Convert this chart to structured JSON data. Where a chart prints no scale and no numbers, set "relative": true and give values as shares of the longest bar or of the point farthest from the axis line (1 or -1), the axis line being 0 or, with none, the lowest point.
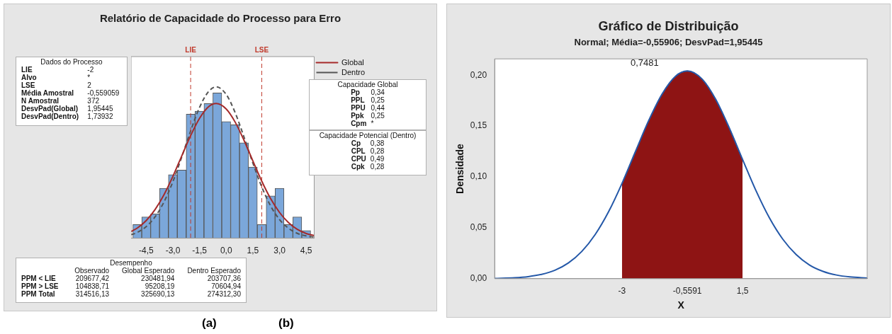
{
  "chart_data": [
    {
      "type": "histogram",
      "title": "Relatório de Capacidade do Processo para Erro",
      "relative": true,
      "color": "#7ba7da",
      "bins": [
        -5.25,
        -4.75,
        -4.25,
        -3.75,
        -3.25,
        -2.75,
        -2.25,
        -1.75,
        -1.25,
        -0.75,
        -0.25,
        0.25,
        0.75,
        1.25,
        1.75,
        2.25,
        2.75,
        3.25,
        3.75,
        4.25,
        4.75
      ],
      "values": [
        0.09,
        0.14,
        0.16,
        0.33,
        0.42,
        0.45,
        0.82,
        0.84,
        0.89,
        0.96,
        0.77,
        0.75,
        0.63,
        0.47,
        0.09,
        0.28,
        0.33,
        0.09,
        0.14,
        0.05
      ],
      "series": [
        {
          "type": "line",
          "name": "Global",
          "color": "#a52a2a",
          "line_style": "solid",
          "x": [
            -5.35,
            -5,
            -4.5,
            -4,
            -3.5,
            -3,
            -2.5,
            -2,
            -1.5,
            -1,
            -0.559,
            0,
            0.5,
            1,
            1.5,
            2,
            2.5,
            3,
            3.5,
            4,
            4.5,
            4.95
          ],
          "values": [
            0.044,
            0.067,
            0.116,
            0.189,
            0.287,
            0.408,
            0.544,
            0.678,
            0.792,
            0.868,
            0.89,
            0.854,
            0.768,
            0.647,
            0.511,
            0.377,
            0.261,
            0.17,
            0.103,
            0.058,
            0.031,
            0.017
          ]
        },
        {
          "type": "line",
          "name": "Dentro",
          "color": "#555555",
          "line_style": "dashed",
          "x": [
            -5.35,
            -5,
            -4.5,
            -4,
            -3.5,
            -3,
            -2.5,
            -2,
            -1.5,
            -1,
            -0.559,
            0,
            0.5,
            1,
            1.5,
            2,
            2.5,
            3,
            3.5,
            4,
            4.5,
            4.95
          ],
          "values": [
            0.023,
            0.038,
            0.077,
            0.141,
            0.239,
            0.373,
            0.536,
            0.709,
            0.864,
            0.968,
            1,
            0.95,
            0.831,
            0.669,
            0.496,
            0.339,
            0.213,
            0.123,
            0.066,
            0.032,
            0.015,
            0.007
          ]
        }
      ],
      "xlim": [
        -5.35,
        4.95
      ],
      "xticks": [
        {
          "value": -4.5,
          "label": "-4,5"
        },
        {
          "value": -3,
          "label": "-3,0"
        },
        {
          "value": -1.5,
          "label": "-1,5"
        },
        {
          "value": 0,
          "label": "0,0"
        },
        {
          "value": 1.5,
          "label": "1,5"
        },
        {
          "value": 3,
          "label": "3,0"
        },
        {
          "value": 4.5,
          "label": "4,5"
        }
      ],
      "ref_lines": [
        {
          "axis": "x",
          "value": -2,
          "label": "LIE",
          "color": "#c0392b",
          "line_style": "dashed"
        },
        {
          "axis": "x",
          "value": 2,
          "label": "LSE",
          "color": "#c0392b",
          "line_style": "dashed"
        }
      ],
      "legend": "top right",
      "annotations": [
        "(a)",
        "(b)"
      ]
    },
    {
      "type": "other",
      "title": "Dados do Processo",
      "annotations": [
        "LIE",
        "-2",
        "Alvo",
        "*",
        "LSE",
        "2",
        "Média Amostral",
        "-0,559059",
        "N Amostral",
        "372",
        "DesvPad(Global)",
        "1,95445",
        "DesvPad(Dentro)",
        "1,73932"
      ]
    },
    {
      "type": "other",
      "title": "Capacidade Global",
      "annotations": [
        "Pp",
        "0,34",
        "PPL",
        "0,25",
        "PPU",
        "0,44",
        "Ppk",
        "0,25",
        "Cpm",
        "*"
      ]
    },
    {
      "type": "other",
      "title": "Capacidade Potencial (Dentro)",
      "annotations": [
        "Cp",
        "0,38",
        "CPL",
        "0,28",
        "CPU",
        "0,49",
        "Cpk",
        "0,28"
      ]
    },
    {
      "type": "other",
      "title": "Desempenho",
      "annotations": [
        "Observado",
        "Global Esperado",
        "Dentro Esperado",
        "PPM < LIE",
        "209677,42",
        "230481,94",
        "203707,36",
        "PPM > LSE",
        "104838,71",
        "95208,19",
        "70604,94",
        "PPM Total",
        "314516,13",
        "325690,13",
        "274312,30"
      ]
    },
    {
      "type": "line",
      "title": "Gráfico de Distribuição",
      "subtitle": "Normal; Média=-0,55906; DesvPad=1,95445",
      "xlabel": "X",
      "ylabel": "Densidade",
      "series": [
        {
          "type": "area",
          "color": "#8e1414",
          "x": [
            -3,
            -2.5,
            -2,
            -1.5,
            -1,
            -0.559,
            0,
            0.5,
            1,
            1.5
          ],
          "values": [
            0.0935,
            0.1247,
            0.1555,
            0.1816,
            0.199,
            0.2041,
            0.1959,
            0.1761,
            0.1484,
            0.1172
          ]
        },
        {
          "type": "line",
          "color": "#2458a8",
          "x": [
            -7.75,
            -7,
            -6.5,
            -6,
            -5.5,
            -5,
            -4.5,
            -4,
            -3.5,
            -3,
            -2.5,
            -2,
            -1.5,
            -1,
            -0.559,
            0,
            0.5,
            1,
            1.5,
            2,
            2.5,
            3,
            3.5,
            4,
            4.5,
            5,
            5.5,
            6.15
          ],
          "values": [
            0.0002,
            0.0009,
            0.002,
            0.0042,
            0.0083,
            0.0154,
            0.0267,
            0.0433,
            0.0657,
            0.0935,
            0.1247,
            0.1555,
            0.1816,
            0.199,
            0.2041,
            0.1959,
            0.1761,
            0.1484,
            0.1172,
            0.0865,
            0.0598,
            0.0388,
            0.0237,
            0.0134,
            0.0072,
            0.0036,
            0.0017,
            0.0006
          ]
        }
      ],
      "xlim": [
        -7.75,
        6.15
      ],
      "ylim": [
        0,
        0.216
      ],
      "xticks": [
        {
          "value": -3,
          "label": "-3"
        },
        {
          "value": -0.5591,
          "label": "-0,5591"
        },
        {
          "value": 1.5,
          "label": "1,5"
        }
      ],
      "yticks": [
        {
          "value": 0,
          "label": "0,00"
        },
        {
          "value": 0.05,
          "label": "0,05"
        },
        {
          "value": 0.1,
          "label": "0,10"
        },
        {
          "value": 0.15,
          "label": "0,15"
        },
        {
          "value": 0.2,
          "label": "0,20"
        }
      ],
      "annotations": [
        "0,7481"
      ]
    }
  ]
}
